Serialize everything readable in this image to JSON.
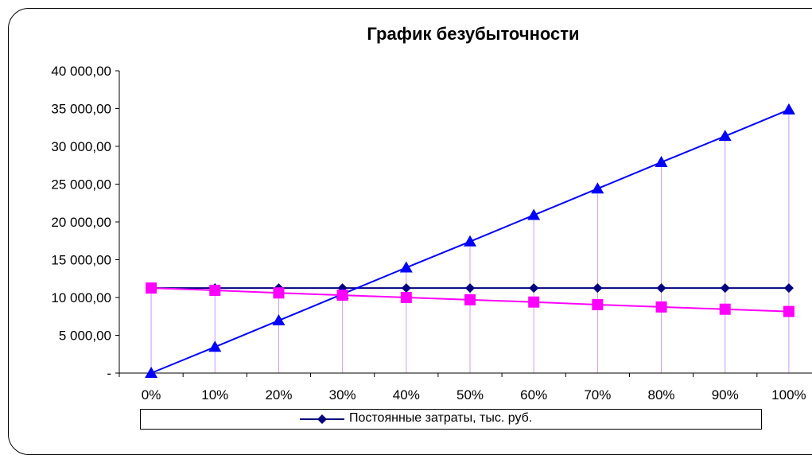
{
  "chart_data": {
    "type": "line",
    "title": "График безубыточности",
    "xlabel": "",
    "ylabel": "",
    "categories": [
      "0%",
      "10%",
      "20%",
      "30%",
      "40%",
      "50%",
      "60%",
      "70%",
      "80%",
      "90%",
      "100%"
    ],
    "y_ticks": [
      "-",
      "5 000,00",
      "10 000,00",
      "15 000,00",
      "20 000,00",
      "25 000,00",
      "30 000,00",
      "35 000,00",
      "40 000,00"
    ],
    "ylim": [
      0,
      40000
    ],
    "grid": false,
    "legend_position": "bottom",
    "series": [
      {
        "name": "Постоянные затраты, тыс. руб.",
        "color": "#000080",
        "marker": "diamond",
        "values": [
          11250,
          11250,
          11250,
          11250,
          11250,
          11250,
          11250,
          11250,
          11250,
          11250,
          11250
        ]
      },
      {
        "color": "#0000FF",
        "marker": "triangle",
        "values": [
          0,
          3450,
          6950,
          10450,
          13950,
          17400,
          20900,
          24400,
          27900,
          31350,
          34850
        ]
      },
      {
        "color": "#FF00FF",
        "marker": "square",
        "values": [
          11250,
          10950,
          10600,
          10300,
          10000,
          9700,
          9400,
          9050,
          8750,
          8450,
          8150
        ]
      }
    ],
    "drop_line_color": "#CC99FF"
  }
}
